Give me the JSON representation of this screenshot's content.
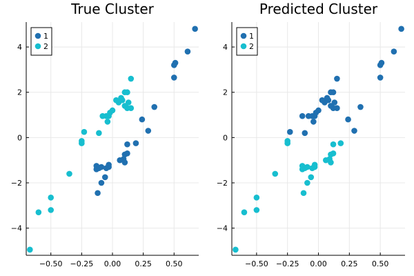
{
  "chart_data": [
    {
      "type": "scatter",
      "title": "True Cluster",
      "xlabel": "",
      "ylabel": "",
      "xlim": [
        -0.7,
        0.7
      ],
      "ylim": [
        -5.2,
        5.1
      ],
      "xticks": [
        -0.5,
        -0.25,
        0.0,
        0.25,
        0.5
      ],
      "xtick_labels": [
        "−0.50",
        "−0.25",
        "0.00",
        "0.25",
        "0.50"
      ],
      "yticks": [
        -4,
        -2,
        0,
        2,
        4
      ],
      "ytick_labels": [
        "−4",
        "−2",
        "0",
        "2",
        "4"
      ],
      "grid": true,
      "legend_position": "top-left",
      "series": [
        {
          "name": "1",
          "color": "#2070b0",
          "points": [
            [
              0.67,
              4.8
            ],
            [
              0.61,
              3.8
            ],
            [
              0.51,
              3.3
            ],
            [
              0.5,
              3.2
            ],
            [
              0.5,
              2.65
            ],
            [
              0.34,
              1.35
            ],
            [
              0.29,
              0.3
            ],
            [
              0.24,
              0.8
            ],
            [
              0.19,
              -0.25
            ],
            [
              0.12,
              -0.3
            ],
            [
              0.12,
              -0.7
            ],
            [
              0.1,
              -0.75
            ],
            [
              0.09,
              -0.95
            ],
            [
              0.06,
              -1.0
            ],
            [
              0.1,
              -1.1
            ],
            [
              -0.03,
              -1.2
            ],
            [
              -0.05,
              -1.35
            ],
            [
              -0.03,
              -1.3
            ],
            [
              -0.09,
              -1.3
            ],
            [
              -0.11,
              -1.35
            ],
            [
              -0.13,
              -1.25
            ],
            [
              -0.13,
              -1.4
            ],
            [
              -0.06,
              -1.75
            ],
            [
              -0.09,
              -2.0
            ],
            [
              -0.12,
              -2.45
            ]
          ]
        },
        {
          "name": "2",
          "color": "#17becf",
          "points": [
            [
              0.15,
              2.6
            ],
            [
              0.12,
              2.0
            ],
            [
              0.1,
              2.0
            ],
            [
              0.07,
              1.75
            ],
            [
              0.05,
              1.55
            ],
            [
              0.13,
              1.55
            ],
            [
              0.15,
              1.3
            ],
            [
              0.12,
              1.3
            ],
            [
              0.1,
              1.4
            ],
            [
              0.08,
              1.65
            ],
            [
              0.03,
              1.65
            ],
            [
              0.0,
              1.2
            ],
            [
              -0.02,
              1.1
            ],
            [
              -0.03,
              0.95
            ],
            [
              -0.05,
              0.95
            ],
            [
              -0.04,
              0.7
            ],
            [
              -0.08,
              0.95
            ],
            [
              -0.11,
              0.2
            ],
            [
              -0.23,
              0.25
            ],
            [
              -0.25,
              -0.15
            ],
            [
              -0.25,
              -0.25
            ],
            [
              -0.35,
              -1.6
            ],
            [
              -0.5,
              -2.65
            ],
            [
              -0.5,
              -3.2
            ],
            [
              -0.6,
              -3.3
            ],
            [
              -0.67,
              -4.95
            ]
          ]
        }
      ]
    },
    {
      "type": "scatter",
      "title": "Predicted Cluster",
      "xlabel": "",
      "ylabel": "",
      "xlim": [
        -0.7,
        0.7
      ],
      "ylim": [
        -5.2,
        5.1
      ],
      "xticks": [
        -0.5,
        -0.25,
        0.0,
        0.25,
        0.5
      ],
      "xtick_labels": [
        "−0.50",
        "−0.25",
        "0.00",
        "0.25",
        "0.50"
      ],
      "yticks": [
        -4,
        -2,
        0,
        2,
        4
      ],
      "ytick_labels": [
        "−4",
        "−2",
        "0",
        "2",
        "4"
      ],
      "grid": true,
      "legend_position": "top-left",
      "series": [
        {
          "name": "1",
          "color": "#2070b0",
          "points": [
            [
              0.67,
              4.8
            ],
            [
              0.61,
              3.8
            ],
            [
              0.51,
              3.3
            ],
            [
              0.5,
              3.2
            ],
            [
              0.5,
              2.65
            ],
            [
              0.34,
              1.35
            ],
            [
              0.29,
              0.3
            ],
            [
              0.24,
              0.8
            ],
            [
              0.15,
              2.6
            ],
            [
              0.12,
              2.0
            ],
            [
              0.1,
              2.0
            ],
            [
              0.07,
              1.75
            ],
            [
              0.05,
              1.55
            ],
            [
              0.13,
              1.55
            ],
            [
              0.15,
              1.3
            ],
            [
              0.12,
              1.3
            ],
            [
              0.1,
              1.4
            ],
            [
              0.08,
              1.65
            ],
            [
              0.03,
              1.65
            ],
            [
              0.0,
              1.2
            ],
            [
              -0.02,
              1.1
            ],
            [
              -0.03,
              0.95
            ],
            [
              -0.05,
              0.95
            ],
            [
              -0.04,
              0.7
            ],
            [
              -0.08,
              0.95
            ],
            [
              -0.11,
              0.2
            ],
            [
              -0.23,
              0.25
            ],
            [
              -0.13,
              0.95
            ]
          ]
        },
        {
          "name": "2",
          "color": "#17becf",
          "points": [
            [
              0.18,
              -0.25
            ],
            [
              0.12,
              -0.3
            ],
            [
              0.12,
              -0.7
            ],
            [
              0.1,
              -0.75
            ],
            [
              0.09,
              -0.95
            ],
            [
              0.06,
              -1.0
            ],
            [
              0.1,
              -1.1
            ],
            [
              -0.03,
              -1.2
            ],
            [
              -0.05,
              -1.35
            ],
            [
              -0.03,
              -1.3
            ],
            [
              -0.09,
              -1.3
            ],
            [
              -0.11,
              -1.35
            ],
            [
              -0.13,
              -1.25
            ],
            [
              -0.13,
              -1.4
            ],
            [
              -0.06,
              -1.75
            ],
            [
              -0.09,
              -2.0
            ],
            [
              -0.12,
              -2.45
            ],
            [
              -0.25,
              -0.15
            ],
            [
              -0.25,
              -0.25
            ],
            [
              -0.35,
              -1.6
            ],
            [
              -0.5,
              -2.65
            ],
            [
              -0.5,
              -3.2
            ],
            [
              -0.6,
              -3.3
            ],
            [
              -0.67,
              -4.95
            ]
          ]
        }
      ]
    }
  ]
}
